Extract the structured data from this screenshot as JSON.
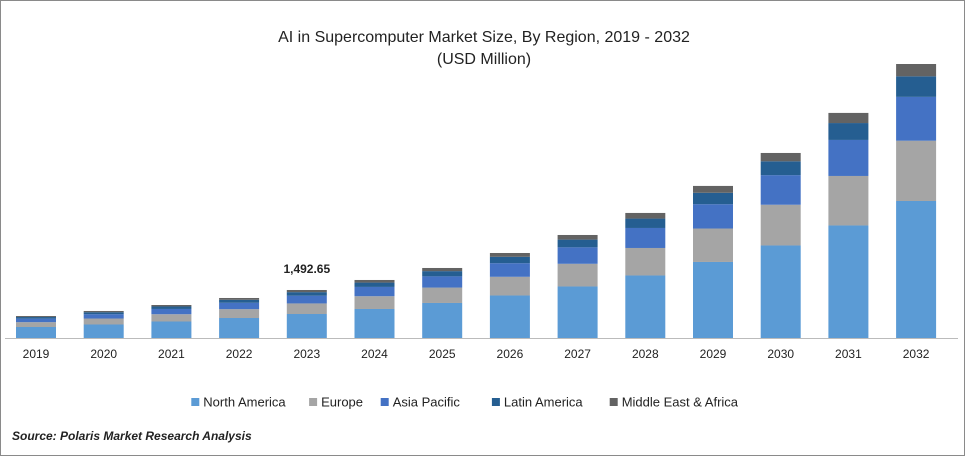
{
  "chart_data": {
    "type": "stacked-bar",
    "title": "AI in Supercomputer Market Size, By Region, 2019 - 2032",
    "subtitle": "(USD Million)",
    "categories": [
      "2019",
      "2020",
      "2021",
      "2022",
      "2023",
      "2024",
      "2025",
      "2026",
      "2027",
      "2028",
      "2029",
      "2030",
      "2031",
      "2032"
    ],
    "series": [
      {
        "name": "North America",
        "color": "#5b9bd5",
        "values": [
          342,
          420,
          513,
          622,
          746.33,
          902,
          1089,
          1322,
          1602,
          1944,
          2364,
          2877,
          3499,
          4260
        ]
      },
      {
        "name": "Europe",
        "color": "#a5a5a5",
        "values": [
          150,
          185,
          226,
          274,
          328.38,
          397,
          479,
          581,
          705,
          855,
          1040,
          1266,
          1539,
          1874
        ]
      },
      {
        "name": "Asia Pacific",
        "color": "#4472c4",
        "values": [
          109,
          134,
          164,
          199,
          238.82,
          289,
          348,
          423,
          512,
          622,
          756,
          920,
          1120,
          1363
        ]
      },
      {
        "name": "Latin America",
        "color": "#255e91",
        "values": [
          51,
          63,
          77,
          93,
          111.95,
          135,
          163,
          198,
          240,
          292,
          355,
          431,
          525,
          639
        ]
      },
      {
        "name": "Middle East & Africa",
        "color": "#636363",
        "values": [
          31,
          38,
          46,
          56,
          67.17,
          81,
          98,
          119,
          144,
          175,
          213,
          259,
          315,
          383
        ]
      }
    ],
    "annotation": {
      "category": "2023",
      "value": 1492.65,
      "label": "1,492.65"
    },
    "source": "Source: Polaris  Market Research Analysis"
  }
}
